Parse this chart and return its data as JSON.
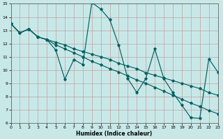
{
  "xlabel": "Humidex (Indice chaleur)",
  "background_color": "#c8e8e8",
  "line_color": "#006060",
  "xlim": [
    0,
    23
  ],
  "ylim": [
    6,
    15
  ],
  "xticks": [
    0,
    1,
    2,
    3,
    4,
    5,
    6,
    7,
    8,
    9,
    10,
    11,
    12,
    13,
    14,
    15,
    16,
    17,
    18,
    19,
    20,
    21,
    22,
    23
  ],
  "yticks": [
    6,
    7,
    8,
    9,
    10,
    11,
    12,
    13,
    14,
    15
  ],
  "line1_y": [
    13.5,
    12.8,
    13.1,
    12.5,
    12.3,
    12.1,
    11.9,
    11.6,
    11.4,
    11.2,
    11.0,
    10.8,
    10.5,
    10.3,
    10.1,
    9.8,
    9.6,
    9.4,
    9.2,
    9.0,
    8.8,
    8.6,
    8.3,
    8.1
  ],
  "line2_y": [
    13.5,
    12.8,
    13.1,
    12.5,
    12.3,
    11.5,
    9.3,
    10.8,
    10.4,
    15.1,
    14.6,
    13.8,
    11.85,
    9.35,
    8.3,
    9.35,
    11.6,
    9.35,
    8.3,
    7.35,
    6.4,
    6.35,
    10.85,
    9.85
  ],
  "line3_y": [
    13.5,
    12.8,
    13.1,
    12.5,
    12.3,
    11.9,
    11.6,
    11.3,
    11.0,
    10.65,
    10.4,
    10.1,
    9.85,
    9.55,
    9.25,
    9.0,
    8.7,
    8.4,
    8.1,
    7.8,
    7.5,
    7.25,
    6.95,
    6.7
  ]
}
